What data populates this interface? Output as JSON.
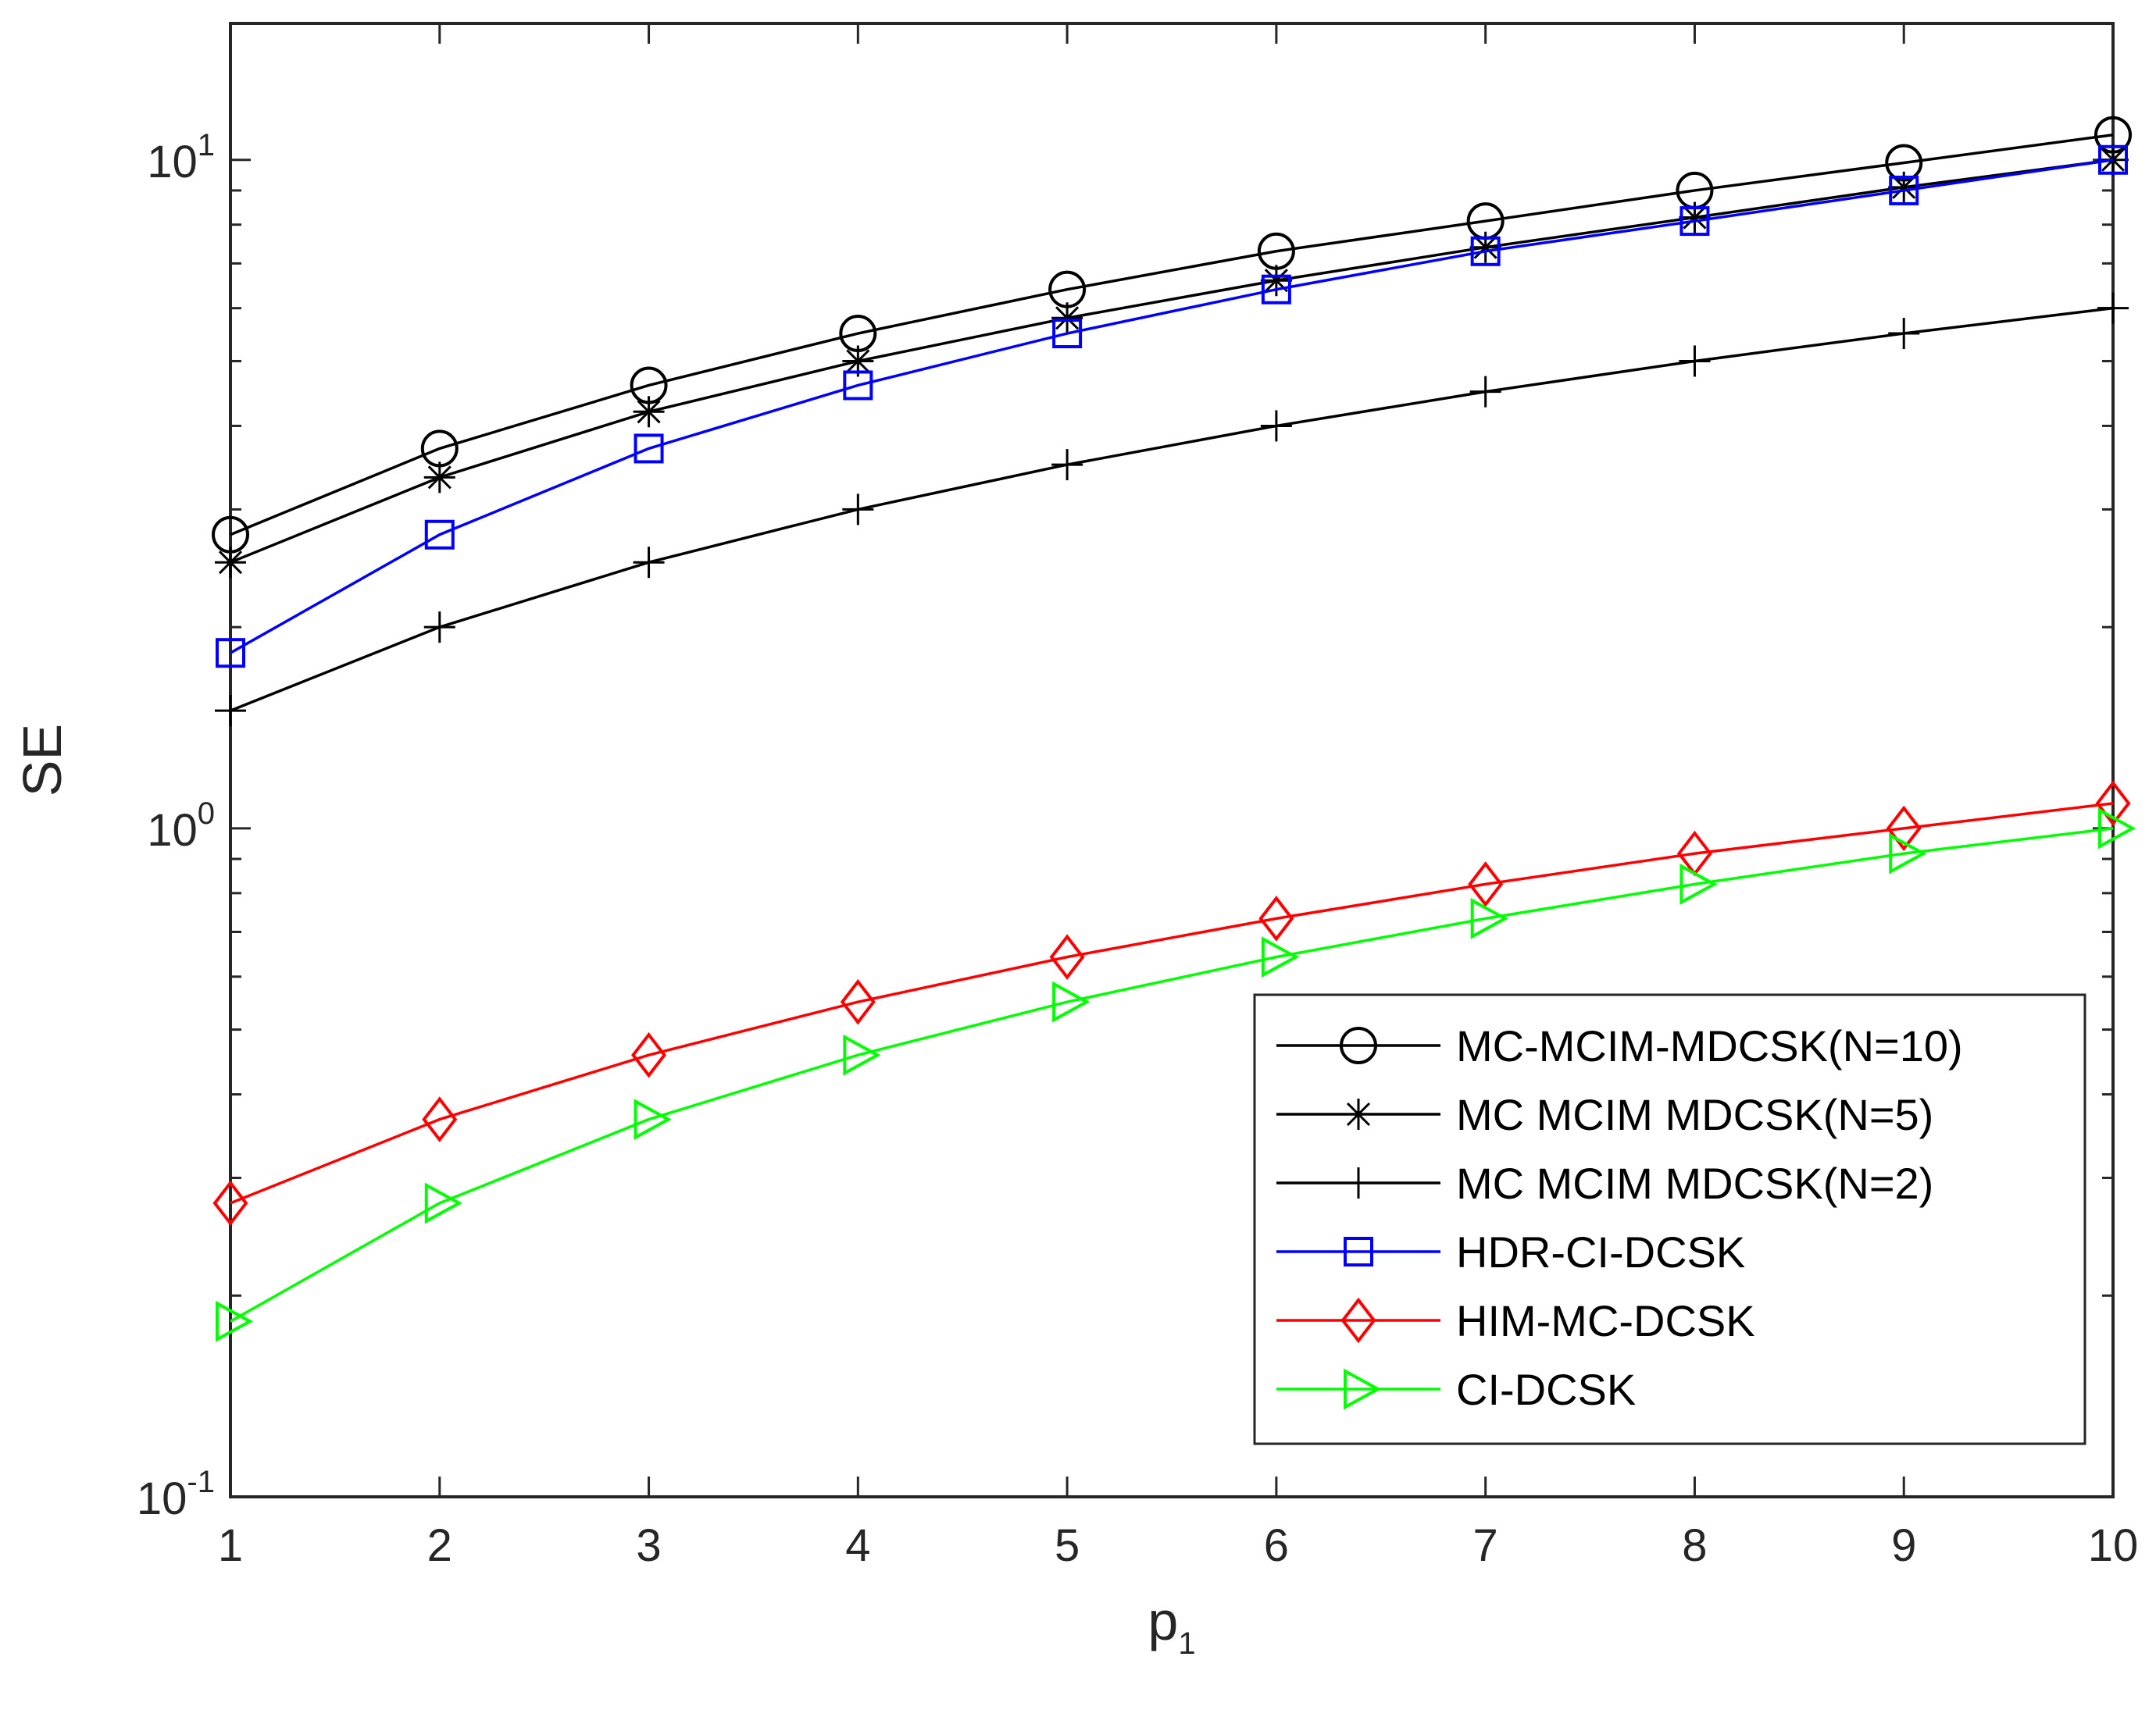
{
  "chart_data": {
    "type": "line",
    "title": "",
    "xlabel": "p",
    "xlabel_sub": "1",
    "ylabel": "SE",
    "yscale": "log",
    "xlim": [
      1,
      10
    ],
    "ylim": [
      0.1,
      16
    ],
    "x": [
      1,
      2,
      3,
      4,
      5,
      6,
      7,
      8,
      9,
      10
    ],
    "x_ticks": [
      "1",
      "2",
      "3",
      "4",
      "5",
      "6",
      "7",
      "8",
      "9",
      "10"
    ],
    "y_ticks": [
      {
        "value": 0.1,
        "base": "10",
        "exp": "-1"
      },
      {
        "value": 1,
        "base": "10",
        "exp": "0"
      },
      {
        "value": 10,
        "base": "10",
        "exp": "1"
      }
    ],
    "grid": false,
    "legend_position": "bottom-right",
    "series": [
      {
        "name": "MC-MCIM-MDCSK(N=10)",
        "color": "#000000",
        "marker": "circle",
        "values": [
          2.75,
          3.7,
          4.6,
          5.5,
          6.4,
          7.3,
          8.1,
          9.0,
          9.9,
          10.9
        ]
      },
      {
        "name": "MC MCIM MDCSK(N=5)",
        "color": "#000000",
        "marker": "asterisk",
        "values": [
          2.5,
          3.35,
          4.2,
          5.0,
          5.8,
          6.6,
          7.4,
          8.2,
          9.1,
          10.0
        ]
      },
      {
        "name": "MC MCIM MDCSK(N=2)",
        "color": "#000000",
        "marker": "plus",
        "values": [
          1.5,
          2.0,
          2.5,
          3.0,
          3.5,
          4.0,
          4.5,
          5.0,
          5.5,
          6.0
        ]
      },
      {
        "name": "HDR-CI-DCSK",
        "color": "#0000ff",
        "marker": "square",
        "values": [
          1.83,
          2.75,
          3.7,
          4.6,
          5.5,
          6.4,
          7.3,
          8.1,
          9.0,
          10.0
        ]
      },
      {
        "name": "HIM-MC-DCSK",
        "color": "#ff0000",
        "marker": "diamond",
        "values": [
          0.275,
          0.367,
          0.458,
          0.55,
          0.642,
          0.733,
          0.825,
          0.917,
          1.0,
          1.09
        ]
      },
      {
        "name": "CI-DCSK",
        "color": "#00ff00",
        "marker": "triangle-right",
        "values": [
          0.183,
          0.275,
          0.367,
          0.458,
          0.55,
          0.642,
          0.733,
          0.825,
          0.917,
          1.0
        ]
      }
    ]
  }
}
